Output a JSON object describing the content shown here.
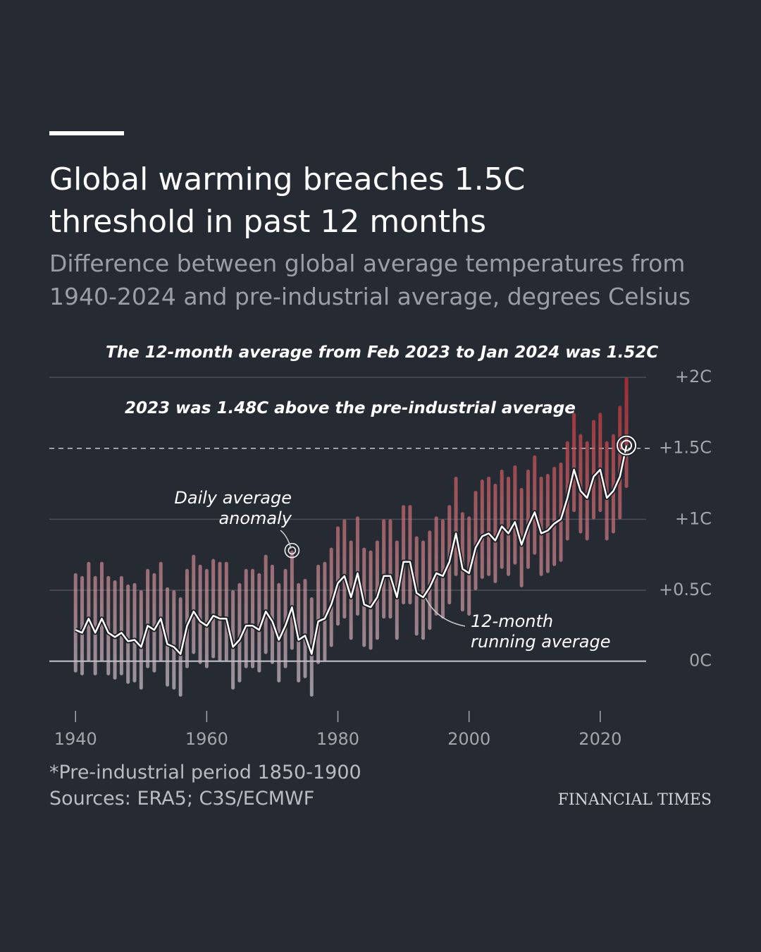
{
  "chart_data": {
    "type": "line",
    "title": "Global warming breaches 1.5C threshold in past 12 months",
    "subtitle": "Difference between global average temperatures from 1940-2024 and pre-industrial average, degrees Celsius",
    "annotations": [
      "The 12-month average from Feb 2023 to Jan 2024 was 1.52C",
      "2023 was 1.48C above the pre-industrial average"
    ],
    "note": "*Pre-industrial period 1850-1900",
    "source": "Sources: ERA5; C3S/ECMWF",
    "brand": "FINANCIAL TIMES",
    "threshold": 1.5,
    "x": [
      1940,
      1941,
      1942,
      1943,
      1944,
      1945,
      1946,
      1947,
      1948,
      1949,
      1950,
      1951,
      1952,
      1953,
      1954,
      1955,
      1956,
      1957,
      1958,
      1959,
      1960,
      1961,
      1962,
      1963,
      1964,
      1965,
      1966,
      1967,
      1968,
      1969,
      1970,
      1971,
      1972,
      1973,
      1974,
      1975,
      1976,
      1977,
      1978,
      1979,
      1980,
      1981,
      1982,
      1983,
      1984,
      1985,
      1986,
      1987,
      1988,
      1989,
      1990,
      1991,
      1992,
      1993,
      1994,
      1995,
      1996,
      1997,
      1998,
      1999,
      2000,
      2001,
      2002,
      2003,
      2004,
      2005,
      2006,
      2007,
      2008,
      2009,
      2010,
      2011,
      2012,
      2013,
      2014,
      2015,
      2016,
      2017,
      2018,
      2019,
      2020,
      2021,
      2022,
      2023,
      2024
    ],
    "series": [
      {
        "name": "12-month running average",
        "color": "#ffffff",
        "values": [
          0.22,
          0.2,
          0.3,
          0.2,
          0.3,
          0.2,
          0.17,
          0.2,
          0.14,
          0.15,
          0.1,
          0.25,
          0.22,
          0.3,
          0.12,
          0.1,
          0.05,
          0.25,
          0.35,
          0.28,
          0.25,
          0.32,
          0.3,
          0.3,
          0.1,
          0.15,
          0.25,
          0.25,
          0.22,
          0.35,
          0.28,
          0.15,
          0.25,
          0.38,
          0.15,
          0.18,
          0.05,
          0.28,
          0.3,
          0.4,
          0.55,
          0.6,
          0.45,
          0.62,
          0.4,
          0.38,
          0.45,
          0.6,
          0.6,
          0.45,
          0.7,
          0.7,
          0.48,
          0.45,
          0.52,
          0.62,
          0.6,
          0.7,
          0.9,
          0.65,
          0.62,
          0.8,
          0.88,
          0.9,
          0.85,
          0.95,
          0.9,
          0.98,
          0.82,
          0.95,
          1.05,
          0.9,
          0.92,
          0.97,
          1.0,
          1.15,
          1.35,
          1.2,
          1.15,
          1.3,
          1.35,
          1.15,
          1.2,
          1.3,
          1.52
        ]
      },
      {
        "name": "Daily average anomaly",
        "color": "#d42a2e",
        "color_low": "#c9ced8",
        "values": [
          0.62,
          0.6,
          0.7,
          0.6,
          0.7,
          0.6,
          0.57,
          0.6,
          0.54,
          0.55,
          0.5,
          0.65,
          0.62,
          0.7,
          0.52,
          0.5,
          0.45,
          0.65,
          0.75,
          0.68,
          0.65,
          0.72,
          0.7,
          0.7,
          0.5,
          0.55,
          0.65,
          0.65,
          0.62,
          0.75,
          0.68,
          0.55,
          0.65,
          0.78,
          0.55,
          0.58,
          0.45,
          0.68,
          0.7,
          0.8,
          0.95,
          1.0,
          0.85,
          1.02,
          0.8,
          0.78,
          0.85,
          1.0,
          1.0,
          0.85,
          1.1,
          1.1,
          0.88,
          0.85,
          0.92,
          1.02,
          1.0,
          1.1,
          1.3,
          1.05,
          1.02,
          1.2,
          1.28,
          1.3,
          1.25,
          1.35,
          1.3,
          1.38,
          1.22,
          1.35,
          1.45,
          1.3,
          1.32,
          1.37,
          1.4,
          1.55,
          1.75,
          1.6,
          1.55,
          1.7,
          1.75,
          1.55,
          1.6,
          1.8,
          2.0
        ],
        "low": [
          -0.08,
          -0.1,
          0,
          -0.1,
          0,
          -0.1,
          -0.13,
          -0.1,
          -0.16,
          -0.15,
          -0.2,
          -0.05,
          -0.08,
          0,
          -0.18,
          -0.2,
          -0.25,
          -0.05,
          0.05,
          -0.02,
          -0.05,
          0.02,
          0,
          0,
          -0.2,
          -0.15,
          -0.05,
          -0.05,
          -0.08,
          0.05,
          -0.02,
          -0.15,
          -0.05,
          0.08,
          -0.15,
          -0.12,
          -0.25,
          -0.02,
          0,
          0.1,
          0.25,
          0.3,
          0.15,
          0.32,
          0.1,
          0.08,
          0.15,
          0.3,
          0.3,
          0.15,
          0.4,
          0.4,
          0.18,
          0.15,
          0.22,
          0.32,
          0.3,
          0.4,
          0.6,
          0.35,
          0.32,
          0.5,
          0.58,
          0.6,
          0.55,
          0.65,
          0.6,
          0.68,
          0.52,
          0.65,
          0.75,
          0.6,
          0.62,
          0.67,
          0.7,
          0.85,
          1.05,
          0.9,
          0.85,
          1.0,
          1.05,
          0.85,
          0.9,
          1.0,
          1.22
        ]
      }
    ],
    "xlim": [
      1936,
      2027
    ],
    "xticks": [
      1940,
      1960,
      1980,
      2000,
      2020
    ],
    "ylim": [
      -0.35,
      2.05
    ],
    "yticks": [
      {
        "value": 2,
        "label": "+2C"
      },
      {
        "value": 1.5,
        "label": "+1.5C"
      },
      {
        "value": 1,
        "label": "+1C"
      },
      {
        "value": 0.5,
        "label": "+0.5C"
      },
      {
        "value": 0,
        "label": "0C"
      }
    ],
    "grid": true
  }
}
